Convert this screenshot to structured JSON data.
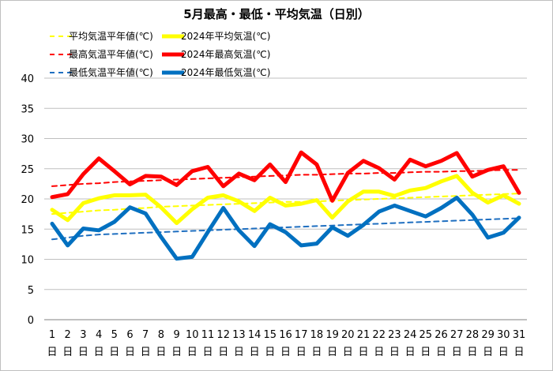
{
  "chart_data": {
    "type": "line",
    "title": "5月最高・最低・平均気温（日別）",
    "y_ticks": [
      0,
      5,
      10,
      15,
      20,
      25,
      30,
      35,
      40
    ],
    "ylim": [
      0,
      40
    ],
    "grid": "horizontal",
    "legend_placement": "top-left",
    "day_suffix": "日",
    "categories": [
      "1",
      "2",
      "3",
      "4",
      "5",
      "6",
      "7",
      "8",
      "9",
      "10",
      "11",
      "12",
      "13",
      "14",
      "15",
      "16",
      "17",
      "18",
      "19",
      "20",
      "21",
      "22",
      "23",
      "24",
      "25",
      "26",
      "27",
      "28",
      "29",
      "30",
      "31"
    ],
    "series": [
      {
        "name": "平均気温平年値(℃)",
        "color": "#ffff00",
        "style": "dashed",
        "values": [
          17.5,
          17.7,
          17.9,
          18.1,
          18.2,
          18.4,
          18.5,
          18.7,
          18.8,
          18.9,
          19.0,
          19.1,
          19.2,
          19.3,
          19.4,
          19.5,
          19.5,
          19.6,
          19.7,
          19.8,
          19.9,
          20.0,
          20.1,
          20.2,
          20.3,
          20.4,
          20.5,
          20.6,
          20.7,
          20.8,
          20.9
        ]
      },
      {
        "name": "2024年平均気温(℃)",
        "color": "#ffff00",
        "style": "solid",
        "values": [
          18.2,
          16.5,
          19.3,
          20.1,
          20.6,
          20.6,
          20.7,
          18.6,
          16.0,
          18.3,
          20.2,
          20.6,
          19.6,
          18.0,
          20.2,
          18.9,
          19.2,
          19.8,
          16.9,
          19.6,
          21.2,
          21.2,
          20.5,
          21.4,
          21.8,
          22.9,
          23.8,
          21.0,
          19.4,
          20.6,
          19.2
        ]
      },
      {
        "name": "最高気温平年値(℃)",
        "color": "#ff0000",
        "style": "dashed",
        "values": [
          22.1,
          22.3,
          22.5,
          22.6,
          22.8,
          22.9,
          23.0,
          23.1,
          23.2,
          23.3,
          23.4,
          23.5,
          23.6,
          23.7,
          23.8,
          23.9,
          24.0,
          24.0,
          24.1,
          24.2,
          24.2,
          24.3,
          24.3,
          24.4,
          24.5,
          24.5,
          24.6,
          24.6,
          24.7,
          24.8,
          24.8
        ]
      },
      {
        "name": "2024年最高気温(℃)",
        "color": "#ff0000",
        "style": "solid",
        "values": [
          20.3,
          20.8,
          24.1,
          26.7,
          24.6,
          22.4,
          23.8,
          23.7,
          22.3,
          24.6,
          25.3,
          22.1,
          24.2,
          23.1,
          25.7,
          22.8,
          27.7,
          25.7,
          19.7,
          24.3,
          26.3,
          25.1,
          23.2,
          26.5,
          25.4,
          26.3,
          27.6,
          23.7,
          24.8,
          25.4,
          21.0
        ]
      },
      {
        "name": "最低気温平年値(℃)",
        "color": "#1f6fc0",
        "style": "dashed",
        "values": [
          13.3,
          13.6,
          13.9,
          14.1,
          14.2,
          14.3,
          14.4,
          14.5,
          14.6,
          14.7,
          14.8,
          14.9,
          15.0,
          15.1,
          15.2,
          15.3,
          15.4,
          15.5,
          15.6,
          15.7,
          15.8,
          15.9,
          16.0,
          16.1,
          16.2,
          16.3,
          16.4,
          16.5,
          16.6,
          16.7,
          16.8
        ]
      },
      {
        "name": "2024年最低気温(℃)",
        "color": "#0070c0",
        "style": "solid",
        "values": [
          15.9,
          12.3,
          15.1,
          14.8,
          16.2,
          18.6,
          17.6,
          13.7,
          10.1,
          10.4,
          14.5,
          18.5,
          14.8,
          12.2,
          15.8,
          14.5,
          12.3,
          12.6,
          15.3,
          13.9,
          15.7,
          17.9,
          18.9,
          18.0,
          17.1,
          18.5,
          20.2,
          17.4,
          13.6,
          14.4,
          16.9
        ]
      }
    ]
  }
}
